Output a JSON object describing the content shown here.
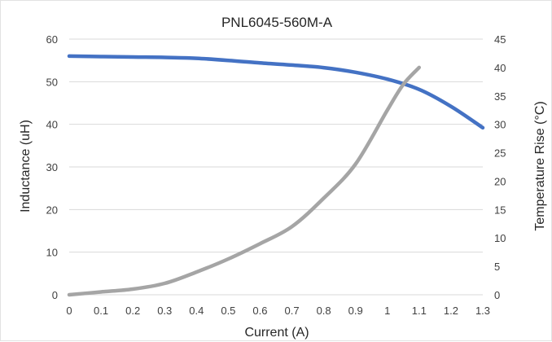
{
  "chart_data": {
    "type": "line",
    "title": "PNL6045-560M-A",
    "xlabel": "Current (A)",
    "ylabel": "Inductance (uH)",
    "y2label": "Temperature Rise (°C)",
    "xlim": [
      0,
      1.3
    ],
    "ylim": [
      0,
      60
    ],
    "y2lim": [
      0,
      45
    ],
    "x_ticks": [
      "0",
      "0.1",
      "0.2",
      "0.3",
      "0.4",
      "0.5",
      "0.6",
      "0.7",
      "0.8",
      "0.9",
      "1",
      "1.1",
      "1.2",
      "1.3"
    ],
    "y_ticks": [
      "0",
      "10",
      "20",
      "30",
      "40",
      "50",
      "60"
    ],
    "y2_ticks": [
      "0",
      "5",
      "10",
      "15",
      "20",
      "25",
      "30",
      "35",
      "40",
      "45"
    ],
    "grid": "horizontal",
    "legend": "none",
    "series": [
      {
        "axis": "left",
        "color": "#4472C4",
        "x": [
          0,
          0.1,
          0.2,
          0.3,
          0.4,
          0.5,
          0.6,
          0.7,
          0.8,
          0.9,
          1.0,
          1.1,
          1.2,
          1.3
        ],
        "values": [
          56.0,
          55.9,
          55.8,
          55.7,
          55.5,
          55.0,
          54.4,
          53.9,
          53.3,
          52.2,
          50.6,
          48.2,
          44.2,
          39.2
        ]
      },
      {
        "axis": "right",
        "color": "#A5A5A5",
        "x": [
          0,
          0.1,
          0.2,
          0.3,
          0.4,
          0.5,
          0.6,
          0.7,
          0.8,
          0.9,
          1.0,
          1.05,
          1.1
        ],
        "values": [
          0,
          0.5,
          1.0,
          2.0,
          4.0,
          6.3,
          9.0,
          12.0,
          17.0,
          23.0,
          32.5,
          37.0,
          40.0
        ]
      }
    ]
  }
}
